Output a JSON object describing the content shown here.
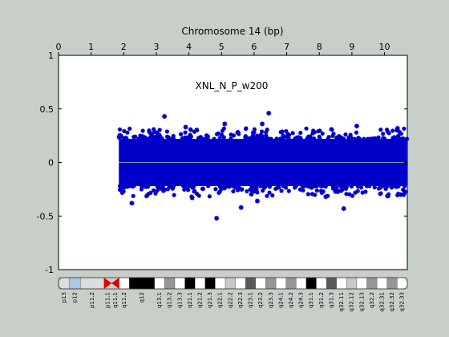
{
  "chart_data": {
    "type": "scatter",
    "title": "Chromosome 14 (bp)",
    "annotation": "XNL_N_P_w200",
    "xlabel": "",
    "ylabel": "",
    "xlim": [
      0,
      10.7
    ],
    "ylim": [
      -1,
      1
    ],
    "xticks": [
      "0",
      "1",
      "2",
      "3",
      "4",
      "5",
      "6",
      "7",
      "8",
      "9",
      "10"
    ],
    "yticks": [
      "-1",
      "-0.5",
      "0",
      "0.5",
      "1"
    ],
    "grid": false,
    "series": [
      {
        "color": "#0000c8",
        "marker": "asterisk",
        "description_only": false,
        "x_range": [
          1.85,
          10.7
        ],
        "band_y": [
          -0.22,
          0.22
        ],
        "outliers": [
          {
            "x": 3.25,
            "y": 0.43
          },
          {
            "x": 6.45,
            "y": 0.46
          },
          {
            "x": 5.1,
            "y": 0.36
          },
          {
            "x": 6.25,
            "y": 0.36
          },
          {
            "x": 3.9,
            "y": 0.33
          },
          {
            "x": 10.4,
            "y": 0.32
          },
          {
            "x": 9.15,
            "y": 0.34
          },
          {
            "x": 4.85,
            "y": -0.52
          },
          {
            "x": 8.75,
            "y": -0.43
          },
          {
            "x": 5.6,
            "y": -0.42
          },
          {
            "x": 2.25,
            "y": -0.38
          },
          {
            "x": 4.1,
            "y": -0.33
          },
          {
            "x": 6.1,
            "y": -0.36
          },
          {
            "x": 8.2,
            "y": -0.32
          },
          {
            "x": 10.5,
            "y": -0.3
          }
        ]
      }
    ],
    "reference_line": {
      "y": 0,
      "color": "#7a8ea8"
    }
  },
  "ideogram": {
    "bands": [
      {
        "label": "p13",
        "stain": "gvar"
      },
      {
        "label": "p12",
        "stain": "stalk"
      },
      {
        "label": "p11.2",
        "stain": "gvar"
      },
      {
        "label": "p11.1",
        "stain": "acen"
      },
      {
        "label": "q11.1",
        "stain": "acen"
      },
      {
        "label": "q11.2",
        "stain": "gneg"
      },
      {
        "label": "q12",
        "stain": "gpos100"
      },
      {
        "label": "q13.1",
        "stain": "gneg"
      },
      {
        "label": "q13.2",
        "stain": "gpos50"
      },
      {
        "label": "q13.3",
        "stain": "gneg"
      },
      {
        "label": "q21.1",
        "stain": "gpos100"
      },
      {
        "label": "q21.2",
        "stain": "gneg"
      },
      {
        "label": "q21.3",
        "stain": "gpos100"
      },
      {
        "label": "q22.1",
        "stain": "gneg"
      },
      {
        "label": "q22.2",
        "stain": "gpos25"
      },
      {
        "label": "q22.3",
        "stain": "gneg"
      },
      {
        "label": "q23.1",
        "stain": "gpos75"
      },
      {
        "label": "q23.2",
        "stain": "gneg"
      },
      {
        "label": "q23.3",
        "stain": "gpos50"
      },
      {
        "label": "q24.1",
        "stain": "gneg"
      },
      {
        "label": "q24.2",
        "stain": "gpos50"
      },
      {
        "label": "q24.3",
        "stain": "gneg"
      },
      {
        "label": "q31.1",
        "stain": "gpos100"
      },
      {
        "label": "q31.2",
        "stain": "gneg"
      },
      {
        "label": "q31.3",
        "stain": "gpos75"
      },
      {
        "label": "q32.11",
        "stain": "gneg"
      },
      {
        "label": "q32.12",
        "stain": "gpos25"
      },
      {
        "label": "q32.13",
        "stain": "gneg"
      },
      {
        "label": "q32.2",
        "stain": "gpos50"
      },
      {
        "label": "q32.31",
        "stain": "gneg"
      },
      {
        "label": "q32.32",
        "stain": "gpos50"
      },
      {
        "label": "q32.33",
        "stain": "gneg"
      }
    ]
  }
}
